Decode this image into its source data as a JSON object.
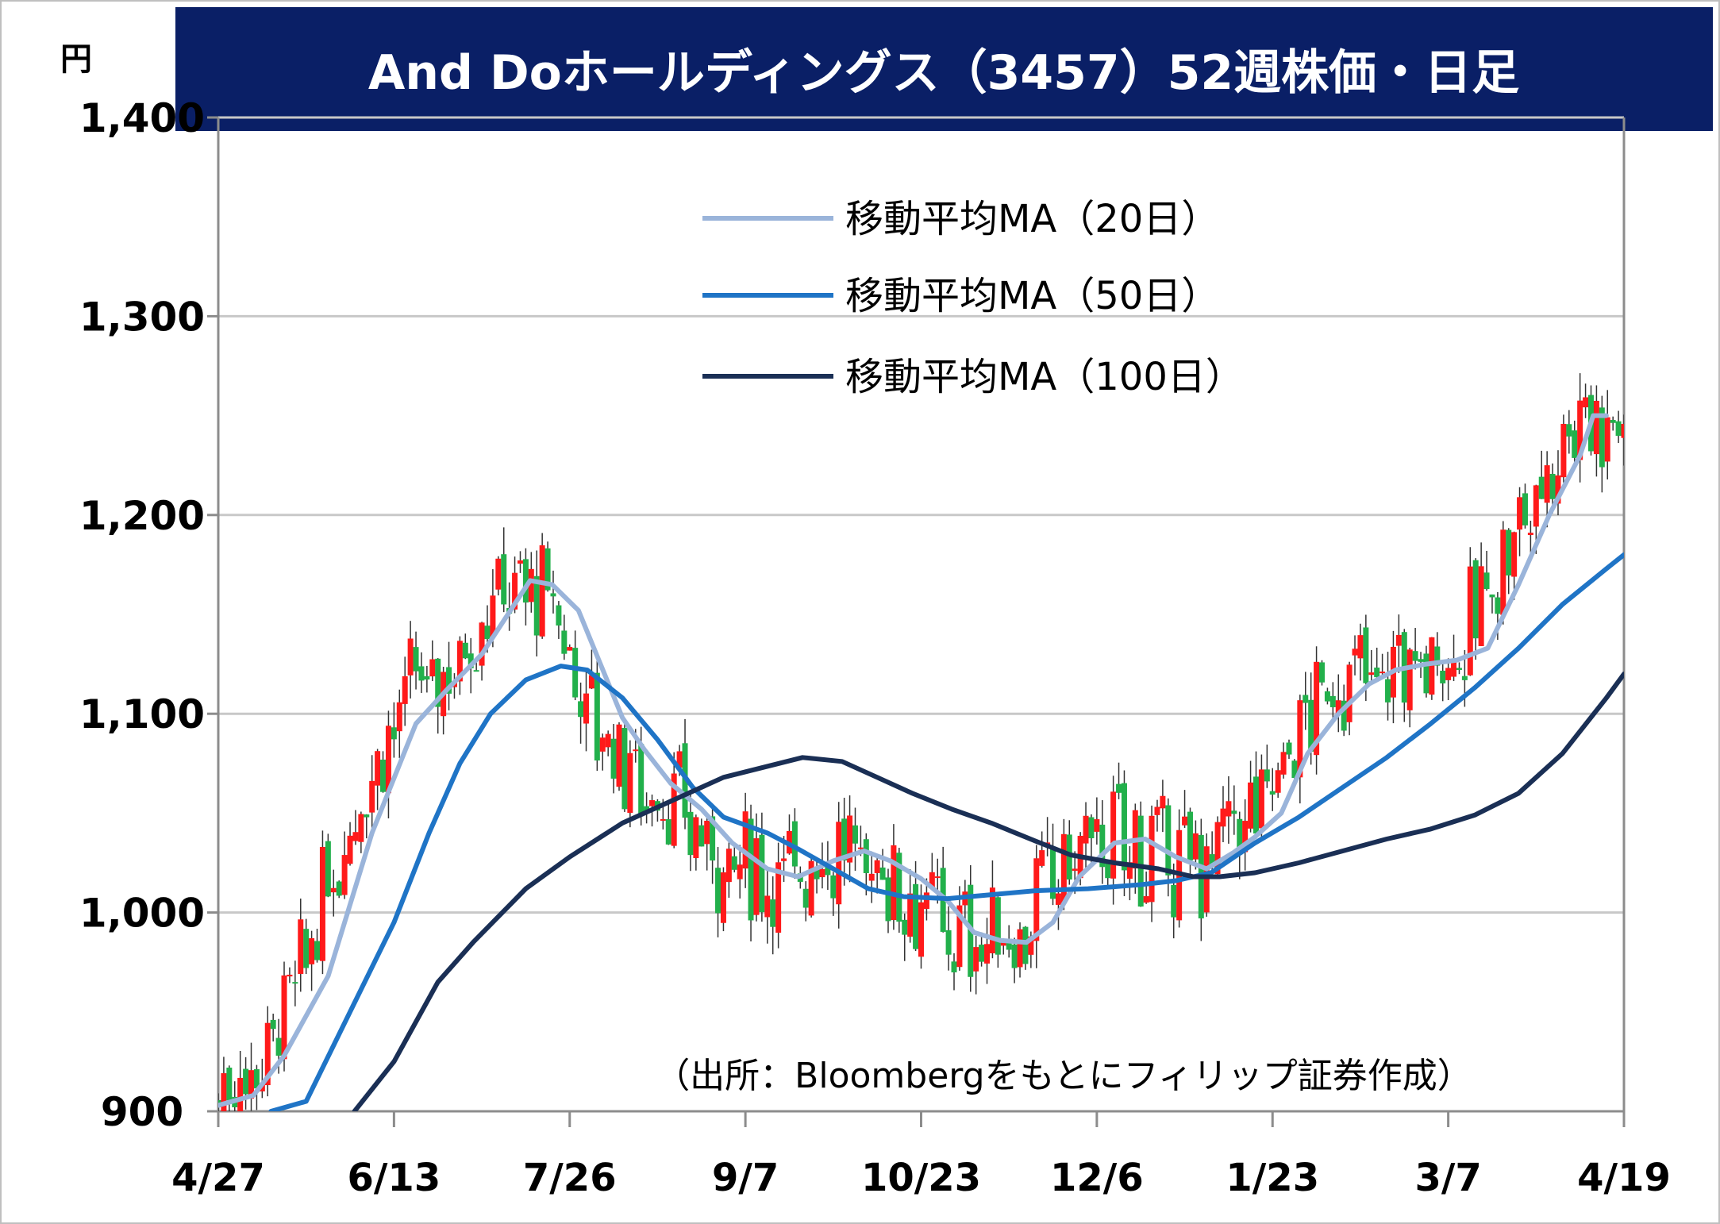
{
  "title": "And Doホールディングス（3457）52週株価・日足",
  "y_unit": "円",
  "source": "（出所：Bloombergをもとにフィリップ証券作成）",
  "colors": {
    "title_bg": "#0a1f66",
    "up": "#ff1a1a",
    "down": "#22b04b",
    "ma20": "#9ab4da",
    "ma50": "#1f74c6",
    "ma100": "#1a2f55",
    "grid": "#c8c8c8",
    "axis": "#8c8c8c"
  },
  "chart_data": {
    "type": "candlestick",
    "title": "And Doホールディングス（3457）52週株価・日足",
    "ylabel": "円",
    "ylim": [
      900,
      1400
    ],
    "yticks": [
      900,
      1000,
      1100,
      1200,
      1300,
      1400
    ],
    "ytick_labels": [
      "900",
      "1,000",
      "1,100",
      "1,200",
      "1,300",
      "1,400"
    ],
    "xticks": [
      "4/27",
      "6/13",
      "7/26",
      "9/7",
      "10/23",
      "12/6",
      "1/23",
      "3/7",
      "4/19"
    ],
    "grid": true,
    "legend_position": "top-center",
    "ma_series": [
      {
        "name": "移動平均MA（20日）",
        "color": "#9ab4da",
        "points": [
          [
            0,
            903
          ],
          [
            8,
            908
          ],
          [
            15,
            928
          ],
          [
            25,
            968
          ],
          [
            35,
            1040
          ],
          [
            45,
            1095
          ],
          [
            52,
            1112
          ],
          [
            60,
            1130
          ],
          [
            68,
            1157
          ],
          [
            71,
            1167
          ],
          [
            76,
            1165
          ],
          [
            82,
            1152
          ],
          [
            87,
            1125
          ],
          [
            92,
            1098
          ],
          [
            97,
            1082
          ],
          [
            103,
            1065
          ],
          [
            110,
            1052
          ],
          [
            117,
            1035
          ],
          [
            125,
            1022
          ],
          [
            132,
            1018
          ],
          [
            140,
            1026
          ],
          [
            147,
            1031
          ],
          [
            153,
            1026
          ],
          [
            160,
            1017
          ],
          [
            166,
            1006
          ],
          [
            172,
            990
          ],
          [
            178,
            986
          ],
          [
            184,
            985
          ],
          [
            190,
            995
          ],
          [
            196,
            1018
          ],
          [
            204,
            1035
          ],
          [
            211,
            1037
          ],
          [
            218,
            1028
          ],
          [
            225,
            1022
          ],
          [
            231,
            1030
          ],
          [
            236,
            1038
          ],
          [
            242,
            1050
          ],
          [
            248,
            1080
          ],
          [
            255,
            1100
          ],
          [
            262,
            1115
          ],
          [
            268,
            1122
          ],
          [
            275,
            1125
          ],
          [
            282,
            1127
          ],
          [
            289,
            1133
          ],
          [
            296,
            1165
          ],
          [
            303,
            1200
          ],
          [
            310,
            1230
          ],
          [
            313,
            1250
          ],
          [
            316,
            1250
          ]
        ]
      },
      {
        "name": "移動平均MA（50日）",
        "color": "#1f74c6",
        "points": [
          [
            12,
            880
          ],
          [
            20,
            905
          ],
          [
            30,
            950
          ],
          [
            40,
            995
          ],
          [
            48,
            1040
          ],
          [
            55,
            1075
          ],
          [
            62,
            1100
          ],
          [
            70,
            1117
          ],
          [
            78,
            1124
          ],
          [
            84,
            1122
          ],
          [
            92,
            1108
          ],
          [
            100,
            1087
          ],
          [
            108,
            1063
          ],
          [
            115,
            1048
          ],
          [
            125,
            1040
          ],
          [
            132,
            1032
          ],
          [
            140,
            1022
          ],
          [
            148,
            1012
          ],
          [
            156,
            1008
          ],
          [
            166,
            1007
          ],
          [
            176,
            1009
          ],
          [
            186,
            1011
          ],
          [
            198,
            1012
          ],
          [
            210,
            1014
          ],
          [
            218,
            1016
          ],
          [
            226,
            1020
          ],
          [
            236,
            1035
          ],
          [
            246,
            1048
          ],
          [
            256,
            1063
          ],
          [
            266,
            1078
          ],
          [
            276,
            1095
          ],
          [
            286,
            1113
          ],
          [
            296,
            1133
          ],
          [
            306,
            1155
          ],
          [
            316,
            1173
          ],
          [
            320,
            1180
          ]
        ]
      },
      {
        "name": "移動平均MA（100日）",
        "color": "#1a2f55",
        "points": [
          [
            31,
            895
          ],
          [
            40,
            925
          ],
          [
            50,
            965
          ],
          [
            58,
            985
          ],
          [
            70,
            1012
          ],
          [
            80,
            1028
          ],
          [
            92,
            1045
          ],
          [
            104,
            1057
          ],
          [
            115,
            1068
          ],
          [
            124,
            1073
          ],
          [
            133,
            1078
          ],
          [
            142,
            1076
          ],
          [
            150,
            1068
          ],
          [
            158,
            1060
          ],
          [
            167,
            1052
          ],
          [
            176,
            1045
          ],
          [
            186,
            1036
          ],
          [
            194,
            1029
          ],
          [
            204,
            1025
          ],
          [
            214,
            1022
          ],
          [
            222,
            1018
          ],
          [
            228,
            1018
          ],
          [
            236,
            1020
          ],
          [
            246,
            1025
          ],
          [
            256,
            1031
          ],
          [
            266,
            1037
          ],
          [
            276,
            1042
          ],
          [
            286,
            1049
          ],
          [
            296,
            1060
          ],
          [
            306,
            1080
          ],
          [
            316,
            1108
          ],
          [
            320,
            1120
          ]
        ]
      }
    ]
  },
  "legend": [
    {
      "label": "移動平均MA（20日）",
      "color": "#9ab4da"
    },
    {
      "label": "移動平均MA（50日）",
      "color": "#1f74c6"
    },
    {
      "label": "移動平均MA（100日）",
      "color": "#1a2f55"
    }
  ]
}
